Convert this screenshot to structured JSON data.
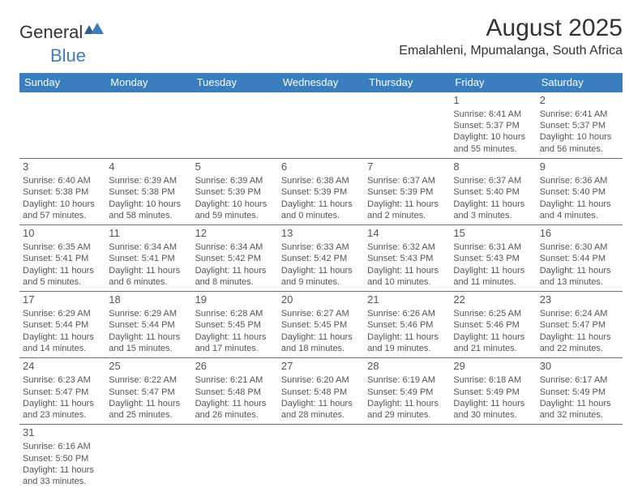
{
  "logo": {
    "text1": "General",
    "text2": "Blue"
  },
  "title": "August 2025",
  "location": "Emalahleni, Mpumalanga, South Africa",
  "weekdays": [
    "Sunday",
    "Monday",
    "Tuesday",
    "Wednesday",
    "Thursday",
    "Friday",
    "Saturday"
  ],
  "colors": {
    "header_bg": "#3a7ebf",
    "header_text": "#ffffff",
    "body_text": "#555555",
    "title_text": "#333333",
    "logo_blue": "#3a7ebf"
  },
  "fonts": {
    "title_size": 30,
    "location_size": 16,
    "weekday_size": 13,
    "daynum_size": 13,
    "cell_size": 11
  },
  "weeks": [
    [
      null,
      null,
      null,
      null,
      null,
      {
        "n": "1",
        "sr": "Sunrise: 6:41 AM",
        "ss": "Sunset: 5:37 PM",
        "d1": "Daylight: 10 hours",
        "d2": "and 55 minutes."
      },
      {
        "n": "2",
        "sr": "Sunrise: 6:41 AM",
        "ss": "Sunset: 5:37 PM",
        "d1": "Daylight: 10 hours",
        "d2": "and 56 minutes."
      }
    ],
    [
      {
        "n": "3",
        "sr": "Sunrise: 6:40 AM",
        "ss": "Sunset: 5:38 PM",
        "d1": "Daylight: 10 hours",
        "d2": "and 57 minutes."
      },
      {
        "n": "4",
        "sr": "Sunrise: 6:39 AM",
        "ss": "Sunset: 5:38 PM",
        "d1": "Daylight: 10 hours",
        "d2": "and 58 minutes."
      },
      {
        "n": "5",
        "sr": "Sunrise: 6:39 AM",
        "ss": "Sunset: 5:39 PM",
        "d1": "Daylight: 10 hours",
        "d2": "and 59 minutes."
      },
      {
        "n": "6",
        "sr": "Sunrise: 6:38 AM",
        "ss": "Sunset: 5:39 PM",
        "d1": "Daylight: 11 hours",
        "d2": "and 0 minutes."
      },
      {
        "n": "7",
        "sr": "Sunrise: 6:37 AM",
        "ss": "Sunset: 5:39 PM",
        "d1": "Daylight: 11 hours",
        "d2": "and 2 minutes."
      },
      {
        "n": "8",
        "sr": "Sunrise: 6:37 AM",
        "ss": "Sunset: 5:40 PM",
        "d1": "Daylight: 11 hours",
        "d2": "and 3 minutes."
      },
      {
        "n": "9",
        "sr": "Sunrise: 6:36 AM",
        "ss": "Sunset: 5:40 PM",
        "d1": "Daylight: 11 hours",
        "d2": "and 4 minutes."
      }
    ],
    [
      {
        "n": "10",
        "sr": "Sunrise: 6:35 AM",
        "ss": "Sunset: 5:41 PM",
        "d1": "Daylight: 11 hours",
        "d2": "and 5 minutes."
      },
      {
        "n": "11",
        "sr": "Sunrise: 6:34 AM",
        "ss": "Sunset: 5:41 PM",
        "d1": "Daylight: 11 hours",
        "d2": "and 6 minutes."
      },
      {
        "n": "12",
        "sr": "Sunrise: 6:34 AM",
        "ss": "Sunset: 5:42 PM",
        "d1": "Daylight: 11 hours",
        "d2": "and 8 minutes."
      },
      {
        "n": "13",
        "sr": "Sunrise: 6:33 AM",
        "ss": "Sunset: 5:42 PM",
        "d1": "Daylight: 11 hours",
        "d2": "and 9 minutes."
      },
      {
        "n": "14",
        "sr": "Sunrise: 6:32 AM",
        "ss": "Sunset: 5:43 PM",
        "d1": "Daylight: 11 hours",
        "d2": "and 10 minutes."
      },
      {
        "n": "15",
        "sr": "Sunrise: 6:31 AM",
        "ss": "Sunset: 5:43 PM",
        "d1": "Daylight: 11 hours",
        "d2": "and 11 minutes."
      },
      {
        "n": "16",
        "sr": "Sunrise: 6:30 AM",
        "ss": "Sunset: 5:44 PM",
        "d1": "Daylight: 11 hours",
        "d2": "and 13 minutes."
      }
    ],
    [
      {
        "n": "17",
        "sr": "Sunrise: 6:29 AM",
        "ss": "Sunset: 5:44 PM",
        "d1": "Daylight: 11 hours",
        "d2": "and 14 minutes."
      },
      {
        "n": "18",
        "sr": "Sunrise: 6:29 AM",
        "ss": "Sunset: 5:44 PM",
        "d1": "Daylight: 11 hours",
        "d2": "and 15 minutes."
      },
      {
        "n": "19",
        "sr": "Sunrise: 6:28 AM",
        "ss": "Sunset: 5:45 PM",
        "d1": "Daylight: 11 hours",
        "d2": "and 17 minutes."
      },
      {
        "n": "20",
        "sr": "Sunrise: 6:27 AM",
        "ss": "Sunset: 5:45 PM",
        "d1": "Daylight: 11 hours",
        "d2": "and 18 minutes."
      },
      {
        "n": "21",
        "sr": "Sunrise: 6:26 AM",
        "ss": "Sunset: 5:46 PM",
        "d1": "Daylight: 11 hours",
        "d2": "and 19 minutes."
      },
      {
        "n": "22",
        "sr": "Sunrise: 6:25 AM",
        "ss": "Sunset: 5:46 PM",
        "d1": "Daylight: 11 hours",
        "d2": "and 21 minutes."
      },
      {
        "n": "23",
        "sr": "Sunrise: 6:24 AM",
        "ss": "Sunset: 5:47 PM",
        "d1": "Daylight: 11 hours",
        "d2": "and 22 minutes."
      }
    ],
    [
      {
        "n": "24",
        "sr": "Sunrise: 6:23 AM",
        "ss": "Sunset: 5:47 PM",
        "d1": "Daylight: 11 hours",
        "d2": "and 23 minutes."
      },
      {
        "n": "25",
        "sr": "Sunrise: 6:22 AM",
        "ss": "Sunset: 5:47 PM",
        "d1": "Daylight: 11 hours",
        "d2": "and 25 minutes."
      },
      {
        "n": "26",
        "sr": "Sunrise: 6:21 AM",
        "ss": "Sunset: 5:48 PM",
        "d1": "Daylight: 11 hours",
        "d2": "and 26 minutes."
      },
      {
        "n": "27",
        "sr": "Sunrise: 6:20 AM",
        "ss": "Sunset: 5:48 PM",
        "d1": "Daylight: 11 hours",
        "d2": "and 28 minutes."
      },
      {
        "n": "28",
        "sr": "Sunrise: 6:19 AM",
        "ss": "Sunset: 5:49 PM",
        "d1": "Daylight: 11 hours",
        "d2": "and 29 minutes."
      },
      {
        "n": "29",
        "sr": "Sunrise: 6:18 AM",
        "ss": "Sunset: 5:49 PM",
        "d1": "Daylight: 11 hours",
        "d2": "and 30 minutes."
      },
      {
        "n": "30",
        "sr": "Sunrise: 6:17 AM",
        "ss": "Sunset: 5:49 PM",
        "d1": "Daylight: 11 hours",
        "d2": "and 32 minutes."
      }
    ],
    [
      {
        "n": "31",
        "sr": "Sunrise: 6:16 AM",
        "ss": "Sunset: 5:50 PM",
        "d1": "Daylight: 11 hours",
        "d2": "and 33 minutes."
      },
      null,
      null,
      null,
      null,
      null,
      null
    ]
  ]
}
